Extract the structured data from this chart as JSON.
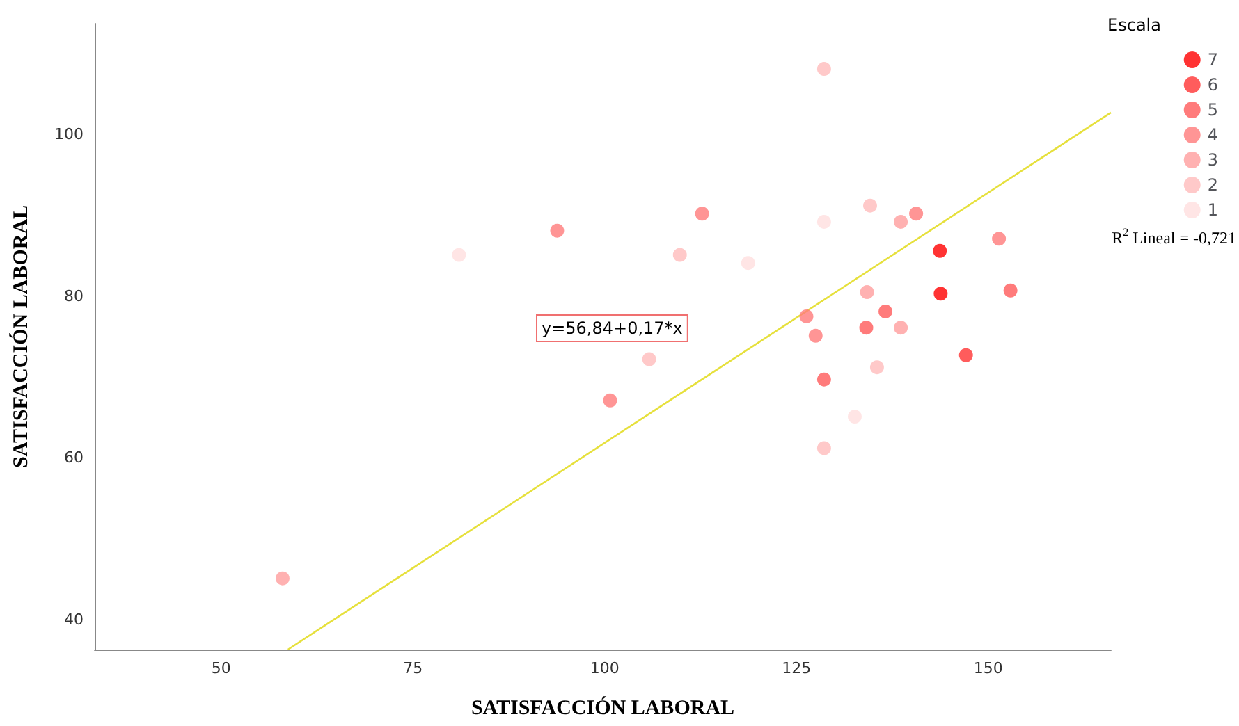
{
  "chart_data": {
    "type": "scatter",
    "xlabel": "SATISFACCIÓN LABORAL",
    "ylabel": "SATISFACCIÓN LABORAL",
    "legend_title": "Escala",
    "legend": "top right",
    "marker": "circle",
    "grid": false,
    "xlim": [
      33.5,
      166
    ],
    "xticks": [
      50,
      75,
      100,
      125,
      150
    ],
    "ylim": [
      36.3,
      113.7
    ],
    "yticks": [
      40,
      60,
      80,
      100
    ],
    "annotations": [
      "y=56,84+0,17*x",
      "R$^{2}$ Lineal = -0,721"
    ],
    "series": [
      {
        "name": "7",
        "color": "#ff0000",
        "x": [
          143.7,
          143.8
        ],
        "values": [
          85.6,
          80.3
        ]
      },
      {
        "name": "6",
        "color": "#ff3333",
        "x": [
          147.1
        ],
        "values": [
          72.7
        ]
      },
      {
        "name": "5",
        "color": "#ff5a5a",
        "x": [
          152.9,
          136.6,
          134.1,
          128.6
        ],
        "values": [
          80.7,
          78.1,
          76.1,
          69.7
        ]
      },
      {
        "name": "4",
        "color": "#ff7b7b",
        "x": [
          93.8,
          100.7,
          112.7,
          140.6,
          151.4,
          126.3,
          127.5
        ],
        "values": [
          88.1,
          67.1,
          90.2,
          90.2,
          87.1,
          77.5,
          75.1
        ]
      },
      {
        "name": "3",
        "color": "#ff9d9d",
        "x": [
          58.0,
          138.6,
          134.2,
          138.6
        ],
        "values": [
          45.1,
          89.2,
          80.5,
          76.1
        ]
      },
      {
        "name": "2",
        "color": "#ffbcbc",
        "x": [
          128.6,
          109.8,
          134.6,
          135.5,
          128.6,
          105.8
        ],
        "values": [
          108.1,
          85.1,
          91.2,
          71.2,
          61.2,
          72.2
        ]
      },
      {
        "name": "1",
        "color": "#ffdede",
        "x": [
          81.0,
          118.7,
          128.6,
          132.6
        ],
        "values": [
          85.1,
          84.1,
          89.2,
          65.1
        ]
      },
      {
        "type": "line",
        "color": "#e6e03c",
        "x": [
          58.7,
          166
        ],
        "values": [
          36.3,
          102.7
        ],
        "marker": "none"
      }
    ]
  }
}
